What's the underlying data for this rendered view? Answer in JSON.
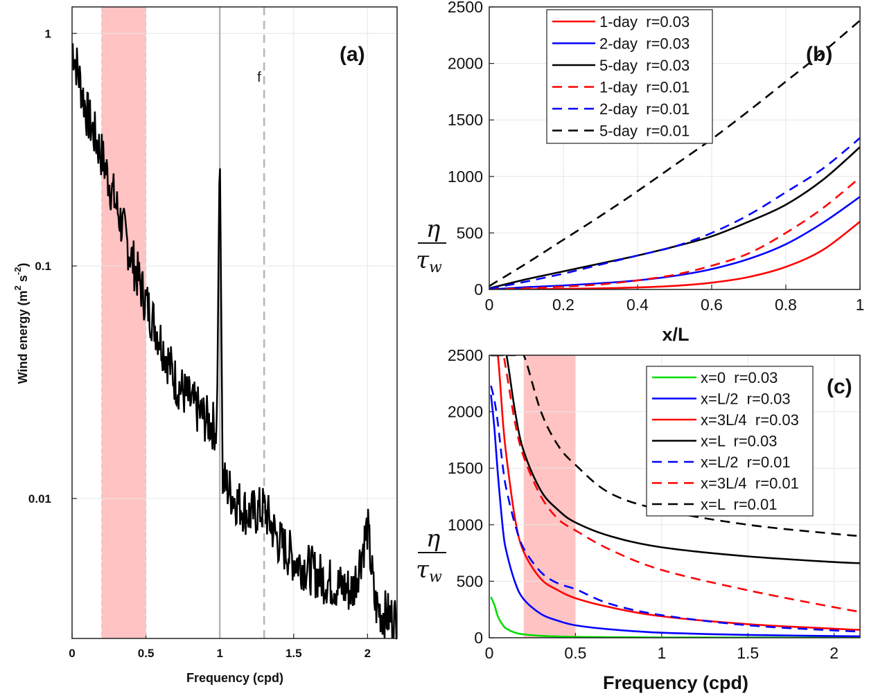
{
  "chart_data": [
    {
      "panel": "(a)",
      "type": "line",
      "xlabel": "Frequency (cpd)",
      "ylabel": "Wind energy (m 2 s-2)",
      "ylabel_parts": {
        "base": "Wind energy (m",
        "sup1": "2",
        "mid": " s",
        "sup2": "-2",
        "tail": ")"
      },
      "yscale": "log",
      "xlim": [
        0,
        2.2
      ],
      "ylim": [
        0.0025,
        1.3
      ],
      "xticks": [
        "0",
        "0.5",
        "1",
        "1.5",
        "2"
      ],
      "yticks": [
        "1",
        "0.1",
        "0.01"
      ],
      "grid": true,
      "shaded_band": [
        0.2,
        0.5
      ],
      "vlines": [
        {
          "x": 1.0,
          "style": "solid"
        },
        {
          "x": 1.3,
          "style": "dashed",
          "label": "f"
        }
      ],
      "series": [
        {
          "x": [
            0.0,
            0.1,
            0.2,
            0.3,
            0.4,
            0.5,
            0.6,
            0.7,
            0.8,
            0.9,
            0.98,
            1.0,
            1.02,
            1.1,
            1.2,
            1.3,
            1.4,
            1.5,
            1.6,
            1.7,
            1.8,
            1.9,
            2.0,
            2.05,
            2.1,
            2.2
          ],
          "y": [
            0.9,
            0.45,
            0.3,
            0.18,
            0.11,
            0.07,
            0.048,
            0.032,
            0.026,
            0.022,
            0.02,
            0.35,
            0.012,
            0.01,
            0.0085,
            0.009,
            0.0065,
            0.0055,
            0.005,
            0.0045,
            0.0042,
            0.004,
            0.0075,
            0.0035,
            0.0032,
            0.003
          ]
        }
      ]
    },
    {
      "panel": "(b)",
      "type": "line",
      "xlabel": "x/L",
      "ylabel_num": "η",
      "ylabel_den": "τ",
      "ylabel_den_sub": "w",
      "xlim": [
        0,
        1
      ],
      "ylim": [
        0,
        2500
      ],
      "xticks": [
        "0",
        "0.2",
        "0.4",
        "0.6",
        "0.8",
        "1"
      ],
      "yticks": [
        "0",
        "500",
        "1000",
        "1500",
        "2000",
        "2500"
      ],
      "grid": true,
      "legend": "top-center",
      "x": [
        0,
        0.1,
        0.2,
        0.3,
        0.4,
        0.5,
        0.6,
        0.7,
        0.8,
        0.9,
        1.0
      ],
      "series": [
        {
          "name": "1-day  r=0.03",
          "color": "#ff0000",
          "dash": "solid",
          "values": [
            0,
            2,
            5,
            10,
            18,
            32,
            60,
            110,
            200,
            350,
            600
          ]
        },
        {
          "name": "2-day  r=0.03",
          "color": "#0000ff",
          "dash": "solid",
          "values": [
            0,
            20,
            35,
            55,
            80,
            120,
            180,
            270,
            400,
            590,
            820
          ]
        },
        {
          "name": "5-day  r=0.03",
          "color": "#000000",
          "dash": "solid",
          "values": [
            10,
            90,
            160,
            230,
            300,
            380,
            470,
            600,
            750,
            970,
            1260
          ]
        },
        {
          "name": "1-day  r=0.01",
          "color": "#ff0000",
          "dash": "dashed",
          "values": [
            0,
            10,
            25,
            45,
            80,
            130,
            210,
            320,
            500,
            720,
            990
          ]
        },
        {
          "name": "2-day  r=0.01",
          "color": "#0000ff",
          "dash": "dashed",
          "values": [
            5,
            70,
            140,
            220,
            300,
            380,
            500,
            660,
            860,
            1070,
            1340
          ]
        },
        {
          "name": "5-day  r=0.01",
          "color": "#000000",
          "dash": "dashed",
          "values": [
            30,
            230,
            440,
            650,
            870,
            1100,
            1330,
            1580,
            1840,
            2100,
            2380
          ]
        }
      ]
    },
    {
      "panel": "(c)",
      "type": "line",
      "xlabel": "Frequency (cpd)",
      "ylabel_num": "η",
      "ylabel_den": "τ",
      "ylabel_den_sub": "w",
      "xlim": [
        0,
        2.15
      ],
      "ylim": [
        0,
        2500
      ],
      "xticks": [
        "0",
        "0.5",
        "1",
        "1.5",
        "2"
      ],
      "yticks": [
        "0",
        "500",
        "1000",
        "1500",
        "2000",
        "2500"
      ],
      "grid": true,
      "shaded_band": [
        0.2,
        0.5
      ],
      "legend": "top-right",
      "x": [
        0.01,
        0.03,
        0.05,
        0.08,
        0.1,
        0.15,
        0.2,
        0.3,
        0.4,
        0.5,
        0.7,
        1.0,
        1.5,
        2.0,
        2.15
      ],
      "series": [
        {
          "name": "x=0  r=0.03",
          "color": "#00dd00",
          "dash": "solid",
          "values": [
            360,
            290,
            190,
            110,
            80,
            45,
            30,
            17,
            11,
            8,
            5,
            3,
            2,
            1,
            1
          ]
        },
        {
          "name": "x=L/2  r=0.03",
          "color": "#0000ff",
          "dash": "solid",
          "values": [
            2150,
            1850,
            1450,
            950,
            760,
            490,
            340,
            210,
            150,
            110,
            75,
            45,
            25,
            15,
            13
          ]
        },
        {
          "name": "x=3L/4  r=0.03",
          "color": "#ff0000",
          "dash": "solid",
          "values": [
            2500,
            2500,
            2500,
            1900,
            1600,
            1050,
            760,
            520,
            420,
            350,
            270,
            190,
            120,
            80,
            70
          ]
        },
        {
          "name": "x=L  r=0.03",
          "color": "#000000",
          "dash": "solid",
          "values": [
            2500,
            2500,
            2500,
            2500,
            2500,
            2000,
            1650,
            1300,
            1130,
            1020,
            900,
            800,
            720,
            670,
            660
          ]
        },
        {
          "name": "x=L/2  r=0.01",
          "color": "#0000ff",
          "dash": "dashed",
          "values": [
            2230,
            2100,
            1900,
            1500,
            1310,
            1000,
            790,
            580,
            480,
            430,
            300,
            200,
            110,
            65,
            55
          ]
        },
        {
          "name": "x=3L/4  r=0.01",
          "color": "#ff0000",
          "dash": "dashed",
          "values": [
            2500,
            2500,
            2500,
            2500,
            2350,
            1900,
            1600,
            1250,
            1050,
            950,
            780,
            600,
            420,
            270,
            230
          ]
        },
        {
          "name": "x=L  r=0.01",
          "color": "#000000",
          "dash": "dashed",
          "values": [
            2500,
            2500,
            2500,
            2500,
            2500,
            2500,
            2500,
            2000,
            1700,
            1530,
            1280,
            1130,
            1000,
            920,
            900
          ]
        }
      ]
    }
  ]
}
